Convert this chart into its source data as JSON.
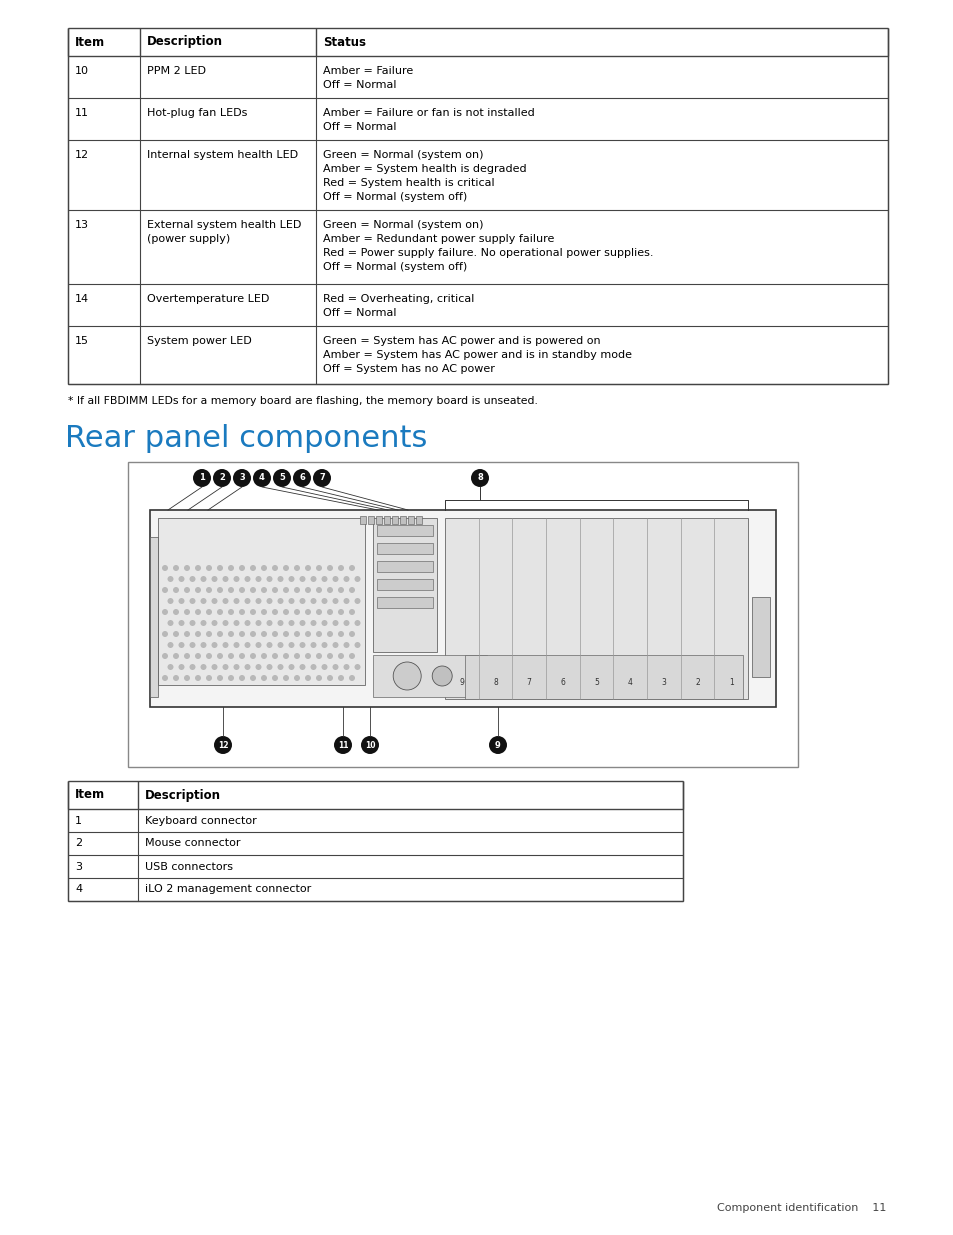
{
  "page_bg": "#ffffff",
  "top_table": {
    "headers": [
      "Item",
      "Description",
      "Status"
    ],
    "rows": [
      {
        "item": "10",
        "description": [
          "PPM 2 LED"
        ],
        "status": [
          "Amber = Failure",
          "Off = Normal"
        ]
      },
      {
        "item": "11",
        "description": [
          "Hot-plug fan LEDs"
        ],
        "status": [
          "Amber = Failure or fan is not installed",
          "Off = Normal"
        ]
      },
      {
        "item": "12",
        "description": [
          "Internal system health LED"
        ],
        "status": [
          "Green = Normal (system on)",
          "Amber = System health is degraded",
          "Red = System health is critical",
          "Off = Normal (system off)"
        ]
      },
      {
        "item": "13",
        "description": [
          "External system health LED",
          "(power supply)"
        ],
        "status": [
          "Green = Normal (system on)",
          "Amber = Redundant power supply failure",
          "Red = Power supply failure. No operational power supplies.",
          "Off = Normal (system off)"
        ]
      },
      {
        "item": "14",
        "description": [
          "Overtemperature LED"
        ],
        "status": [
          "Red = Overheating, critical",
          "Off = Normal"
        ]
      },
      {
        "item": "15",
        "description": [
          "System power LED"
        ],
        "status": [
          "Green = System has AC power and is powered on",
          "Amber = System has AC power and is in standby mode",
          "Off = System has no AC power"
        ]
      }
    ]
  },
  "footnote": "* If all FBDIMM LEDs for a memory board are flashing, the memory board is unseated.",
  "section_title": "Rear panel components",
  "section_title_color": "#1a7abf",
  "bottom_table": {
    "headers": [
      "Item",
      "Description"
    ],
    "rows": [
      [
        "1",
        "Keyboard connector"
      ],
      [
        "2",
        "Mouse connector"
      ],
      [
        "3",
        "USB connectors"
      ],
      [
        "4",
        "iLO 2 management connector"
      ]
    ]
  },
  "footer_text": "Component identification    11",
  "header_font_size": 8.5,
  "body_font_size": 8.0,
  "title_font_size": 22
}
